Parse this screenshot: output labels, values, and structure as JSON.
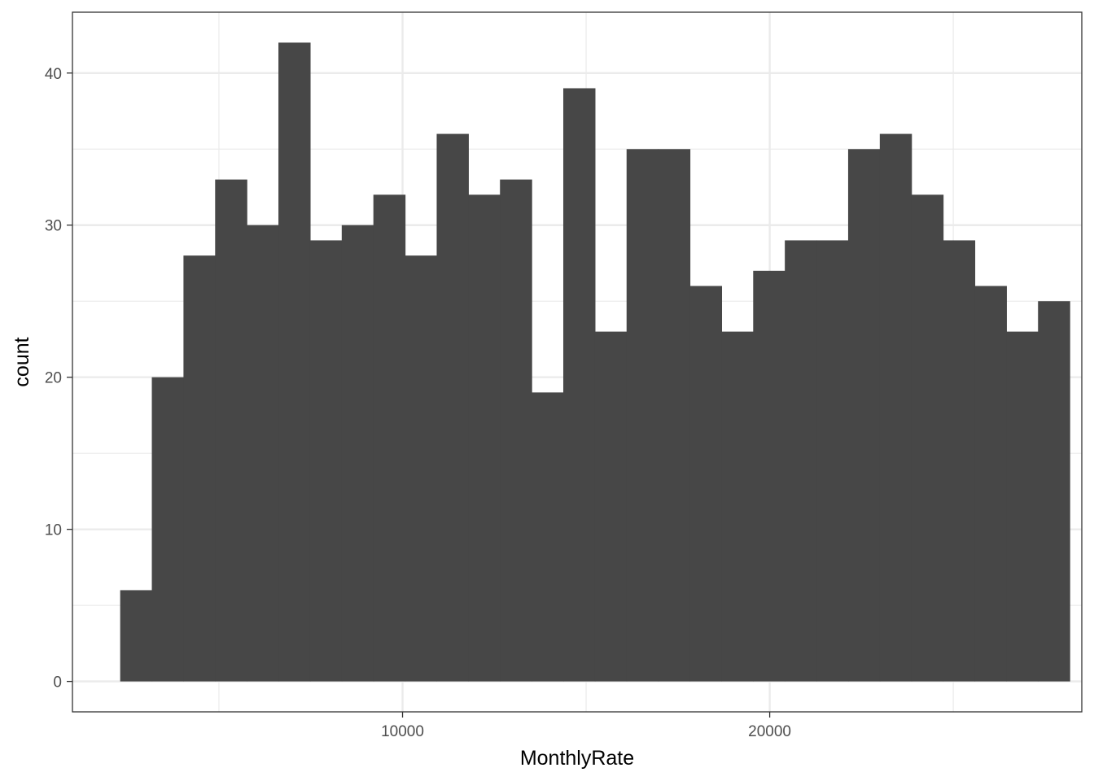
{
  "chart_data": {
    "type": "histogram",
    "title": "",
    "xlabel": "MonthlyRate",
    "ylabel": "count",
    "xlim": [
      1010,
      28500
    ],
    "ylim": [
      -2,
      44
    ],
    "x_ticks": [
      10000,
      20000
    ],
    "y_ticks": [
      0,
      10,
      20,
      30,
      40
    ],
    "bin_width": 862,
    "bins": [
      {
        "x0": 2310,
        "x1": 3172,
        "count": 6
      },
      {
        "x0": 3172,
        "x1": 4034,
        "count": 20
      },
      {
        "x0": 4034,
        "x1": 4896,
        "count": 28
      },
      {
        "x0": 4896,
        "x1": 5758,
        "count": 33
      },
      {
        "x0": 5758,
        "x1": 6620,
        "count": 30
      },
      {
        "x0": 6620,
        "x1": 7482,
        "count": 42
      },
      {
        "x0": 7482,
        "x1": 8344,
        "count": 29
      },
      {
        "x0": 8344,
        "x1": 9206,
        "count": 30
      },
      {
        "x0": 9206,
        "x1": 10068,
        "count": 32
      },
      {
        "x0": 10068,
        "x1": 10930,
        "count": 28
      },
      {
        "x0": 10930,
        "x1": 11792,
        "count": 36
      },
      {
        "x0": 11792,
        "x1": 12654,
        "count": 32
      },
      {
        "x0": 12654,
        "x1": 13516,
        "count": 33
      },
      {
        "x0": 13516,
        "x1": 14378,
        "count": 19
      },
      {
        "x0": 14378,
        "x1": 15240,
        "count": 39
      },
      {
        "x0": 15240,
        "x1": 16102,
        "count": 23
      },
      {
        "x0": 16102,
        "x1": 16964,
        "count": 35
      },
      {
        "x0": 16964,
        "x1": 17826,
        "count": 35
      },
      {
        "x0": 17826,
        "x1": 18688,
        "count": 26
      },
      {
        "x0": 18688,
        "x1": 19550,
        "count": 23
      },
      {
        "x0": 19550,
        "x1": 20412,
        "count": 27
      },
      {
        "x0": 20412,
        "x1": 21274,
        "count": 29
      },
      {
        "x0": 21274,
        "x1": 22136,
        "count": 29
      },
      {
        "x0": 22136,
        "x1": 22998,
        "count": 35
      },
      {
        "x0": 22998,
        "x1": 23860,
        "count": 36
      },
      {
        "x0": 23860,
        "x1": 24722,
        "count": 32
      },
      {
        "x0": 24722,
        "x1": 25584,
        "count": 29
      },
      {
        "x0": 25584,
        "x1": 26446,
        "count": 26
      },
      {
        "x0": 26446,
        "x1": 27308,
        "count": 23
      },
      {
        "x0": 27308,
        "x1": 28170,
        "count": 25
      }
    ],
    "bar_color": "#474747",
    "grid": true,
    "grid_color": "#ebebeb",
    "legend": "none",
    "theme": "bw"
  }
}
